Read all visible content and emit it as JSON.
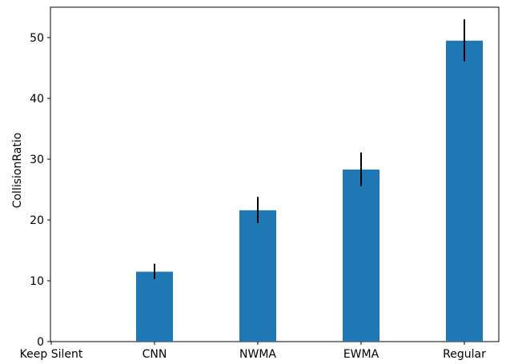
{
  "chart_data": {
    "type": "bar",
    "categories": [
      "Keep Silent",
      "CNN",
      "NWMA",
      "EWMA",
      "Regular"
    ],
    "values": [
      0,
      11.5,
      21.6,
      28.3,
      49.5
    ],
    "error_low": [
      0,
      10.3,
      19.5,
      25.6,
      46.1
    ],
    "error_high": [
      0,
      12.8,
      23.8,
      31.1,
      53.0
    ],
    "title": "",
    "xlabel": "",
    "ylabel": "CollisionRatio",
    "ylim": [
      0,
      55
    ],
    "yticks": [
      0,
      10,
      20,
      30,
      40,
      50
    ],
    "grid": false,
    "bar_color": "#1f77b4",
    "error_color": "#000000"
  }
}
